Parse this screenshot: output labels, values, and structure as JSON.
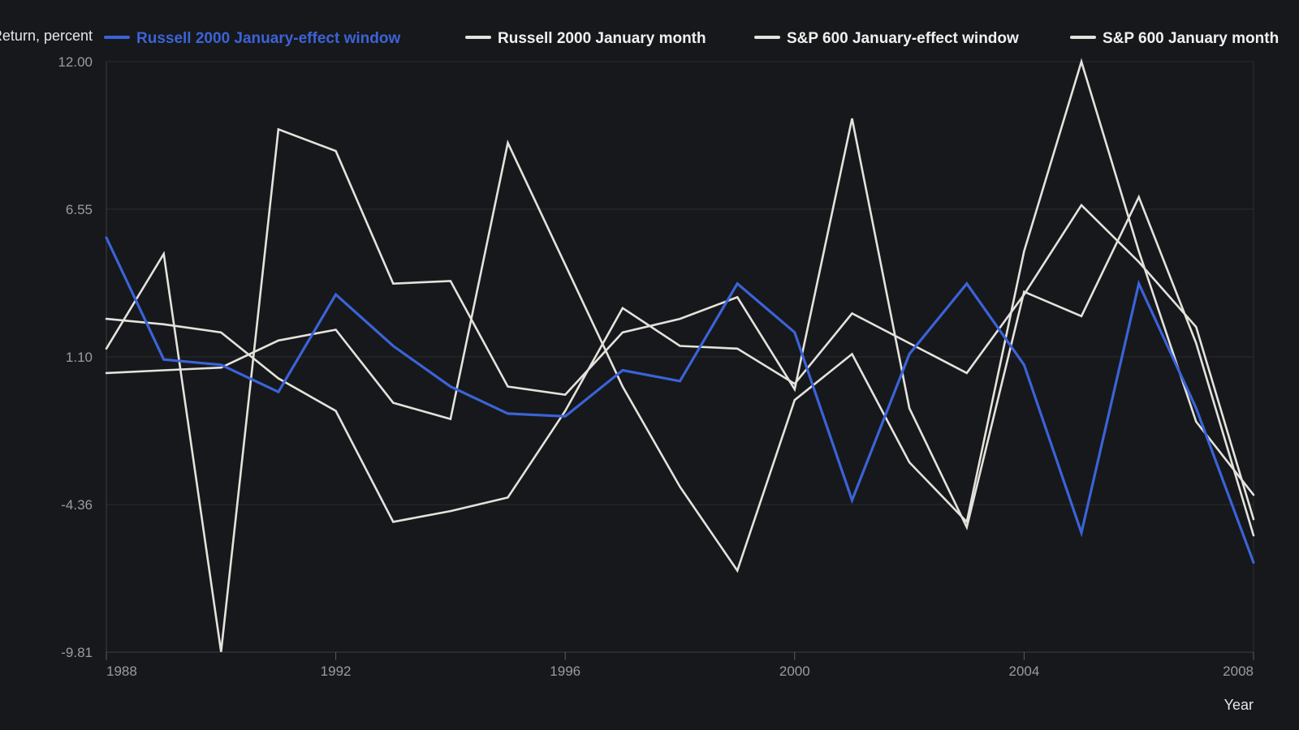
{
  "chart_data": {
    "type": "line",
    "ylabel": "Return, percent",
    "xlabel": "Year",
    "x": [
      1988,
      1989,
      1990,
      1991,
      1992,
      1993,
      1994,
      1995,
      1996,
      1997,
      1998,
      1999,
      2000,
      2001,
      2002,
      2003,
      2004,
      2005,
      2006,
      2007,
      2008
    ],
    "xlim": [
      1988,
      2008
    ],
    "x_ticks": [
      "1988",
      "1992",
      "1996",
      "2000",
      "2004",
      "2008"
    ],
    "ylim": [
      -9.81,
      12.0
    ],
    "y_ticks": [
      "12.00",
      "6.55",
      "1.10",
      "-4.36",
      "-9.81"
    ],
    "grid": true,
    "legend_position": "top",
    "series": [
      {
        "name": "Russell 2000 January-effect window",
        "color": "#3b63d8",
        "values": [
          5.5,
          1.0,
          0.8,
          -0.2,
          3.4,
          1.5,
          0.0,
          -1.0,
          -1.1,
          0.6,
          0.2,
          3.8,
          2.0,
          -4.2,
          1.2,
          3.8,
          0.8,
          -5.4,
          3.8,
          -0.8,
          -6.5
        ]
      },
      {
        "name": "Russell 2000 January month",
        "color": "#e4e2dc",
        "values": [
          1.4,
          4.9,
          -9.8,
          9.5,
          8.7,
          3.8,
          3.9,
          0.0,
          -0.3,
          2.0,
          2.5,
          3.3,
          -0.1,
          9.9,
          -0.8,
          -5.2,
          3.5,
          2.6,
          7.0,
          1.6,
          -5.5
        ]
      },
      {
        "name": "S&P 600 January-effect window",
        "color": "#e4e2dc",
        "values": [
          0.5,
          0.6,
          0.7,
          1.7,
          2.1,
          -0.6,
          -1.2,
          9.0,
          4.5,
          0.0,
          -3.7,
          -6.8,
          -0.5,
          1.2,
          -2.8,
          -5.0,
          5.0,
          12.0,
          5.0,
          -1.3,
          -4.0
        ]
      },
      {
        "name": "S&P 600 January month",
        "color": "#e4e2dc",
        "values": [
          2.5,
          2.3,
          2.0,
          0.3,
          -0.9,
          -5.0,
          -4.6,
          -4.1,
          -0.9,
          2.9,
          1.5,
          1.4,
          0.1,
          2.7,
          1.6,
          0.5,
          3.4,
          6.7,
          4.6,
          2.2,
          -4.9
        ]
      }
    ]
  }
}
